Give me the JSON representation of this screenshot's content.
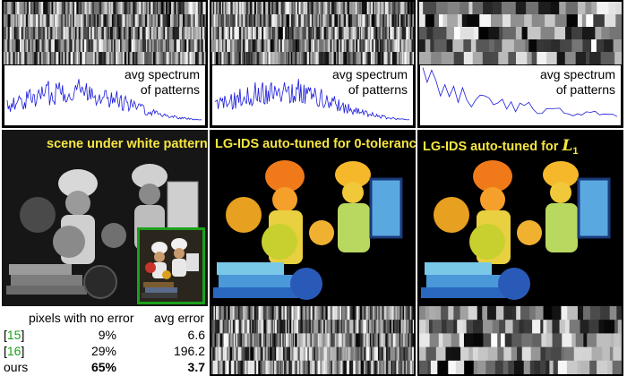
{
  "spectrum_panels": [
    {
      "label_line1": "avg spectrum",
      "label_line2": "of patterns",
      "color": "#1a1adb"
    },
    {
      "label_line1": "avg spectrum",
      "label_line2": "of patterns",
      "color": "#1a1adb"
    },
    {
      "label_line1": "avg spectrum",
      "label_line2": "of patterns",
      "color": "#1a1adb"
    }
  ],
  "scenes": {
    "white": {
      "title": "scene under white pattern"
    },
    "zero_tol": {
      "title": "LG-IDS auto-tuned for 0-tolerance"
    },
    "l1": {
      "title_prefix": "LG-IDS auto-tuned for ",
      "title_math": "L",
      "title_sub": "1"
    }
  },
  "table": {
    "col_headers": [
      "pixels with no error",
      "avg error"
    ],
    "rows": [
      {
        "method_open": "[",
        "method_cite": "15",
        "method_close": "]",
        "no_error": "9%",
        "avg_error": "6.6"
      },
      {
        "method_open": "[",
        "method_cite": "16",
        "method_close": "]",
        "no_error": "29%",
        "avg_error": "196.2"
      },
      {
        "method": "ours",
        "no_error": "65%",
        "avg_error": "3.7"
      }
    ]
  },
  "colors": {
    "accent_green": "#1aa11a",
    "title_yellow": "#f5e642",
    "spectrum_blue": "#1a1adb"
  }
}
